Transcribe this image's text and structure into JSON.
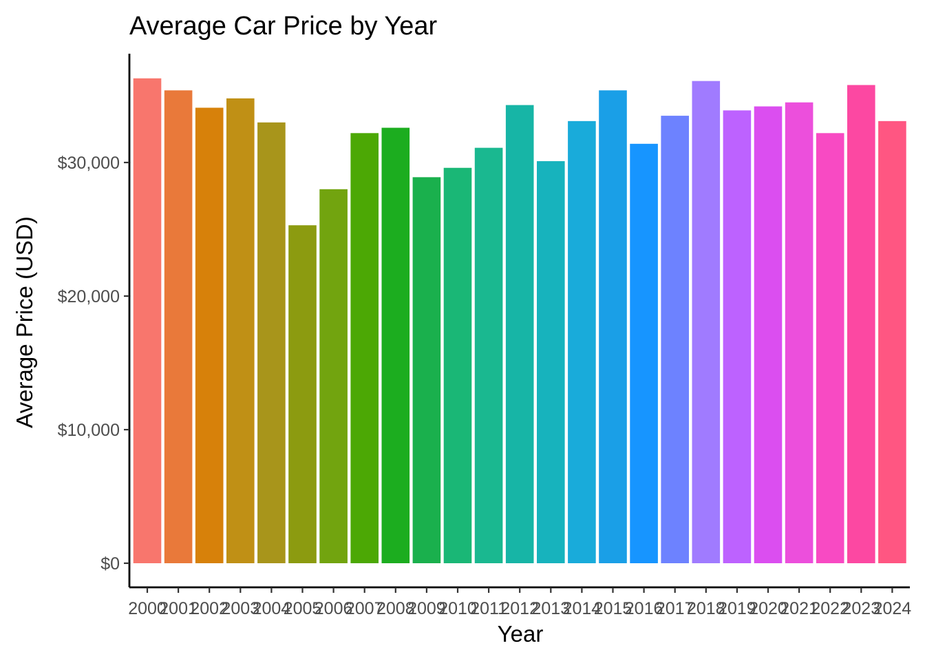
{
  "chart_data": {
    "type": "bar",
    "title": "Average Car Price by Year",
    "xlabel": "Year",
    "ylabel": "Average Price (USD)",
    "categories": [
      "2000",
      "2001",
      "2002",
      "2003",
      "2004",
      "2005",
      "2006",
      "2007",
      "2008",
      "2009",
      "2010",
      "2011",
      "2012",
      "2013",
      "2014",
      "2015",
      "2016",
      "2017",
      "2018",
      "2019",
      "2020",
      "2021",
      "2022",
      "2023",
      "2024"
    ],
    "values": [
      36300,
      35400,
      34100,
      34800,
      33000,
      25300,
      28000,
      32200,
      32600,
      28900,
      29600,
      31100,
      34300,
      30100,
      33100,
      35400,
      31400,
      33500,
      36100,
      33900,
      34200,
      34500,
      32200,
      35800,
      33100
    ],
    "colors": [
      "#F8766D",
      "#E9793A",
      "#D7810A",
      "#C09015",
      "#A8951B",
      "#8C9B10",
      "#72A40F",
      "#4CA805",
      "#1CAD1F",
      "#1AB04D",
      "#1AB776",
      "#1AB890",
      "#17B5A6",
      "#17B3BD",
      "#19ABDA",
      "#1A9FE7",
      "#1795FF",
      "#6D82FF",
      "#A07BFF",
      "#BD62FF",
      "#DB4EF0",
      "#EC4FDC",
      "#F84AC3",
      "#FC48A2",
      "#FF5682"
    ],
    "yticks": [
      0,
      10000,
      20000,
      30000
    ],
    "ytick_labels": [
      "$0",
      "$10,000",
      "$20,000",
      "$30,000"
    ],
    "ylim": [
      0,
      38000
    ],
    "grid": false,
    "legend": "none"
  }
}
